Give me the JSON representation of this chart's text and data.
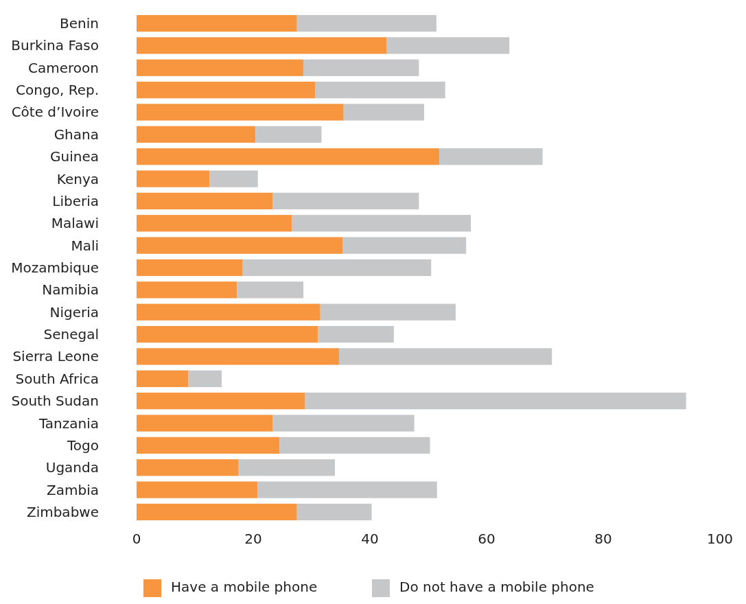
{
  "chart_data": {
    "type": "bar",
    "orientation": "horizontal",
    "stacked": true,
    "categories": [
      "Benin",
      "Burkina Faso",
      "Cameroon",
      "Congo, Rep.",
      "Côte d’Ivoire",
      "Ghana",
      "Guinea",
      "Kenya",
      "Liberia",
      "Malawi",
      "Mali",
      "Mozambique",
      "Namibia",
      "Nigeria",
      "Senegal",
      "Sierra Leone",
      "South Africa",
      "South Sudan",
      "Tanzania",
      "Togo",
      "Uganda",
      "Zambia",
      "Zimbabwe"
    ],
    "series": [
      {
        "name": "Have a mobile phone",
        "color": "#f7963f",
        "values": [
          27.5,
          42.9,
          28.6,
          30.6,
          35.5,
          20.4,
          51.9,
          12.5,
          23.3,
          26.6,
          35.3,
          18.2,
          17.2,
          31.5,
          31.1,
          34.7,
          8.9,
          28.9,
          23.3,
          24.5,
          17.5,
          20.7,
          27.5
        ]
      },
      {
        "name": "Do not have a mobile phone",
        "color": "#c6c7c9",
        "values": [
          23.9,
          21.0,
          19.8,
          22.3,
          13.8,
          11.3,
          17.7,
          8.3,
          25.1,
          30.7,
          21.2,
          32.3,
          11.4,
          23.2,
          13.0,
          36.5,
          5.7,
          65.3,
          24.3,
          25.8,
          16.5,
          30.8,
          12.8
        ]
      }
    ],
    "xlim": [
      0,
      100
    ],
    "xticks": [
      0,
      20,
      40,
      60,
      80,
      100
    ],
    "grid": false,
    "legend": "bottom"
  }
}
